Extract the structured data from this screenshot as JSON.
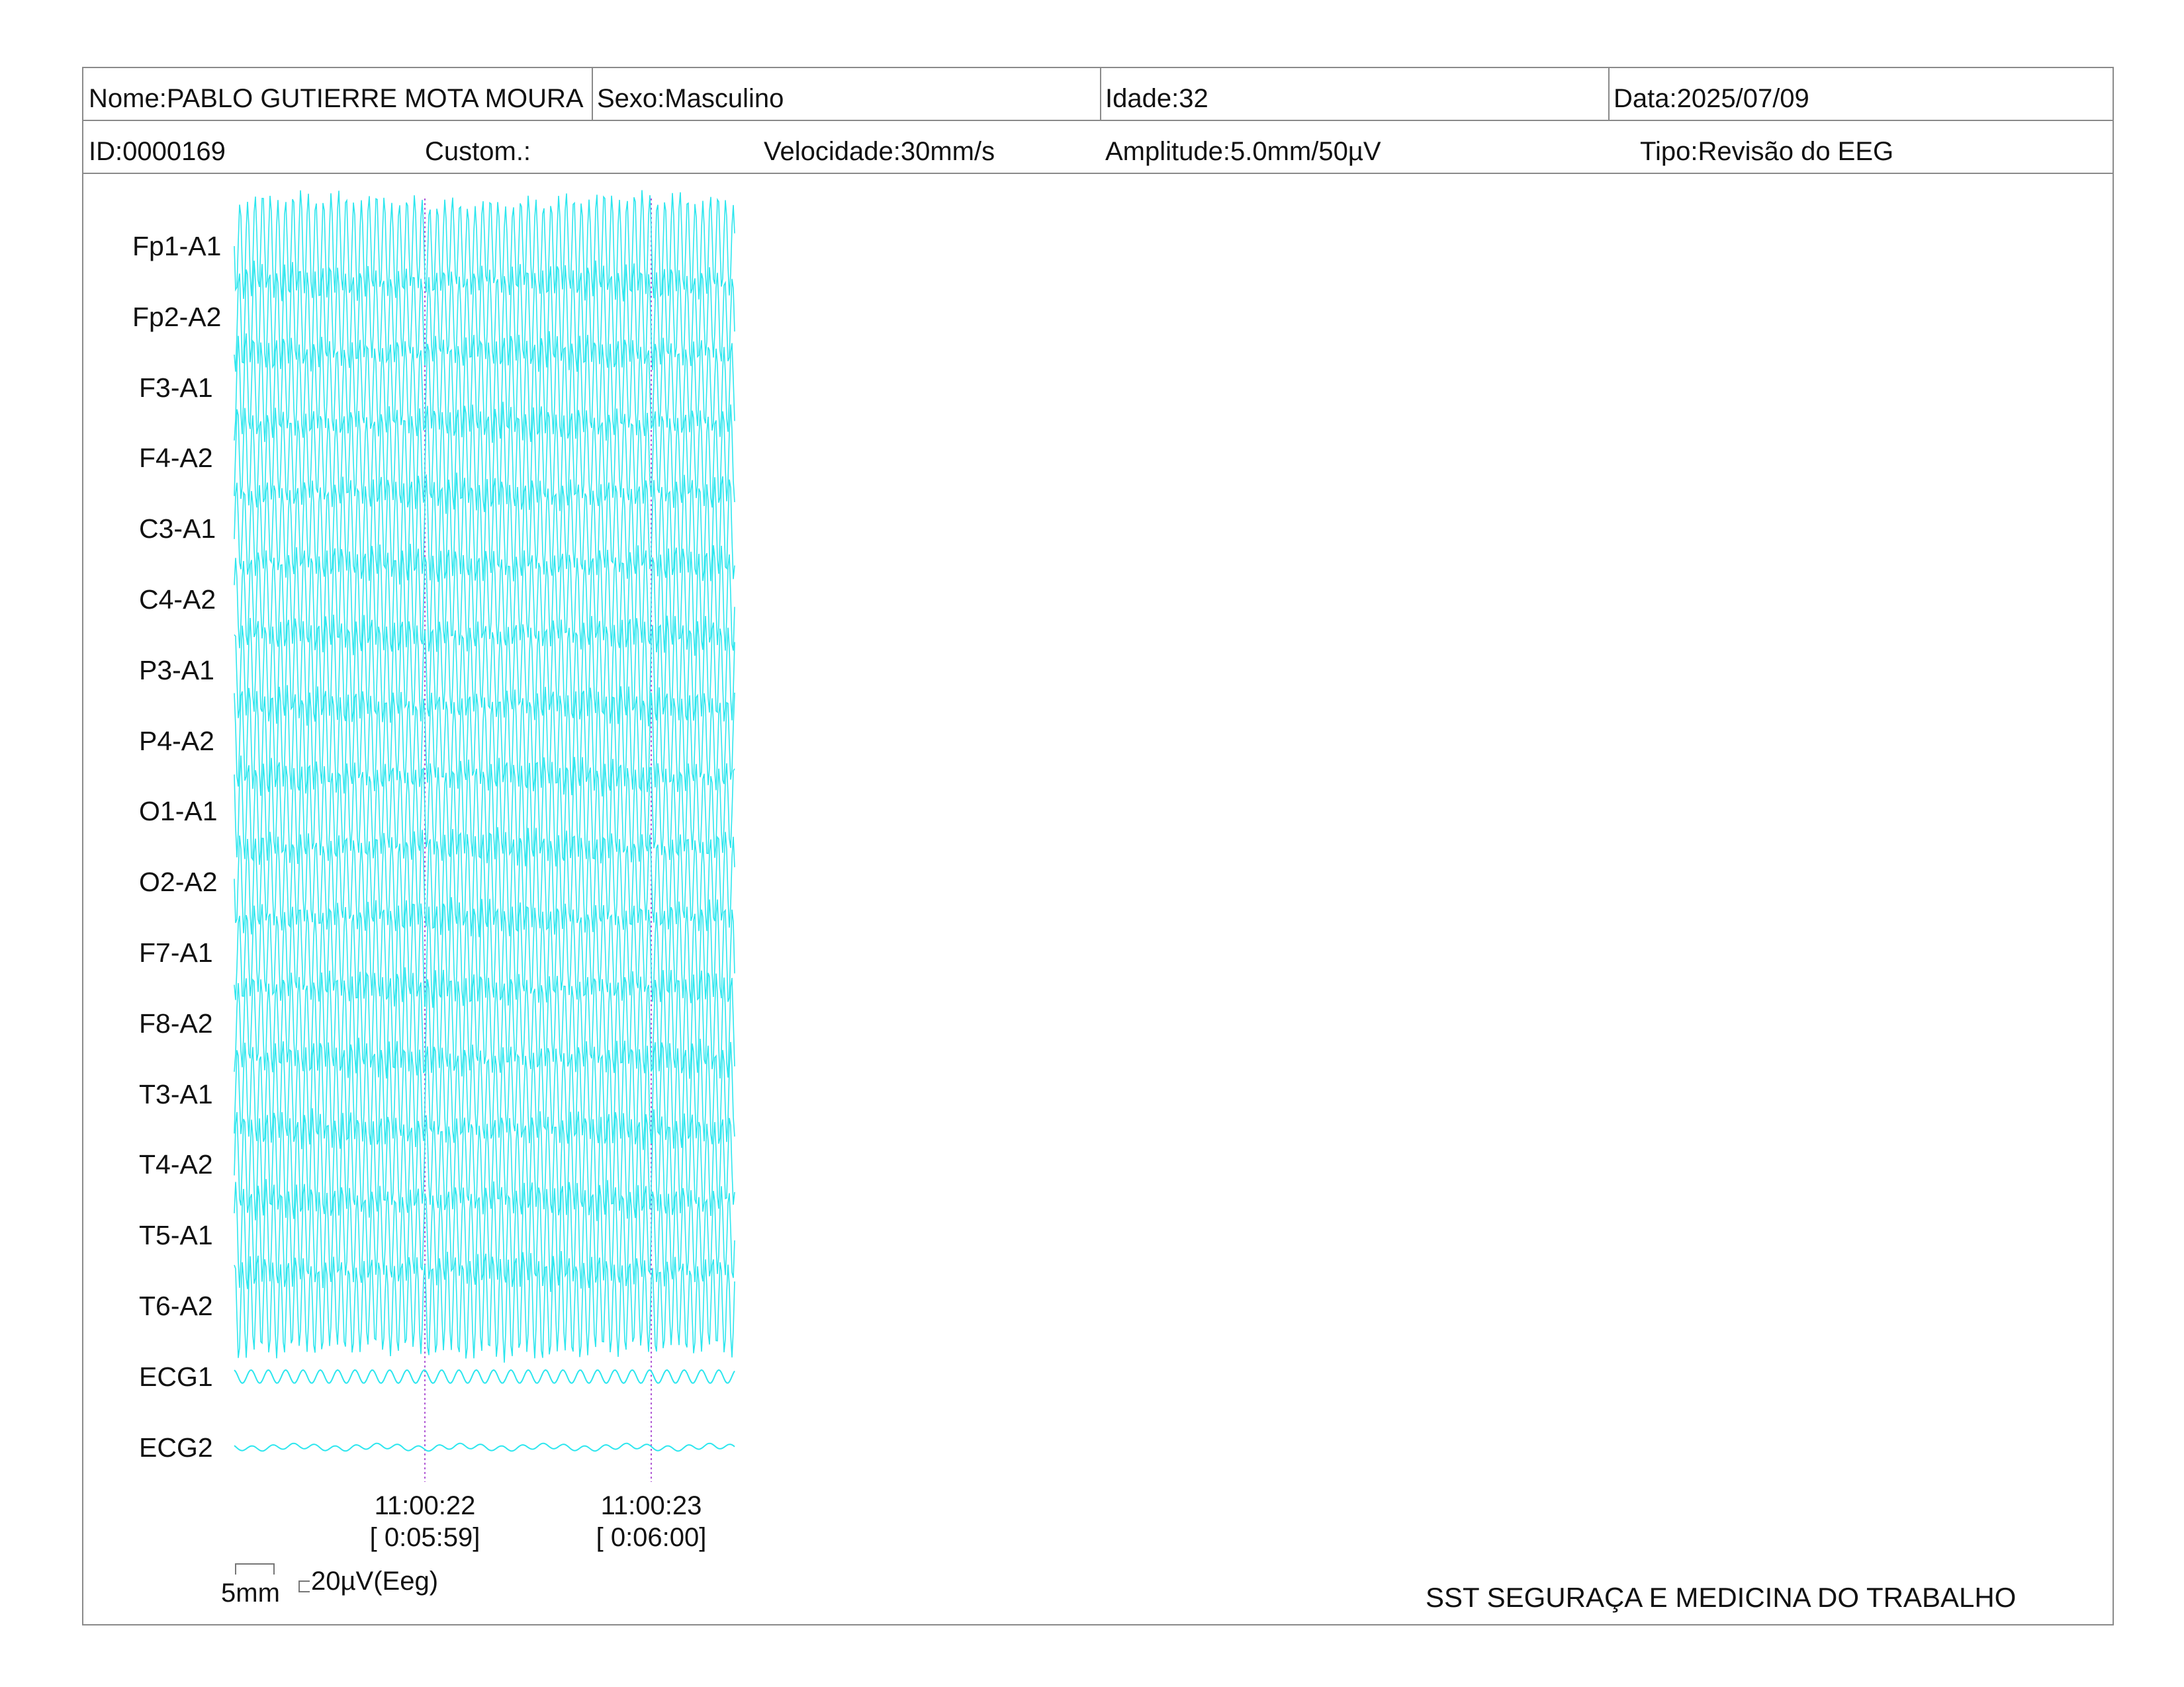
{
  "header": {
    "name": "Nome:PABLO GUTIERRE MOTA MOURA",
    "sex": "Sexo:Masculino",
    "age": "Idade:32",
    "date": "Data:2025/07/09",
    "id": "ID:0000169",
    "custom": "Custom.:",
    "speed": "Velocidade:30mm/s",
    "amplitude": "Amplitude:5.0mm/50µV",
    "type": "Tipo:Revisão do EEG"
  },
  "channels": [
    {
      "label": "Fp1-A1"
    },
    {
      "label": "Fp2-A2"
    },
    {
      "label": "F3-A1"
    },
    {
      "label": "F4-A2"
    },
    {
      "label": "C3-A1"
    },
    {
      "label": "C4-A2"
    },
    {
      "label": "P3-A1"
    },
    {
      "label": "P4-A2"
    },
    {
      "label": "O1-A1"
    },
    {
      "label": "O2-A2"
    },
    {
      "label": "F7-A1"
    },
    {
      "label": "F8-A2"
    },
    {
      "label": "T3-A1"
    },
    {
      "label": "T4-A2"
    },
    {
      "label": "T5-A1"
    },
    {
      "label": "T6-A2"
    },
    {
      "label": "ECG1"
    },
    {
      "label": "ECG2"
    }
  ],
  "time_markers": [
    {
      "clock": "11:00:22",
      "elapsed": "[ 0:05:59]"
    },
    {
      "clock": "11:00:23",
      "elapsed": "[ 0:06:00]"
    }
  ],
  "scale": {
    "time": "5mm",
    "amplitude": "20µV(Eeg)"
  },
  "footer": {
    "company": "SST SEGURAÇA E MEDICINA DO TRABALHO"
  },
  "colors": {
    "trace": "#2de6ee",
    "marker": "#b25bd6",
    "border": "#8a8a8a"
  }
}
